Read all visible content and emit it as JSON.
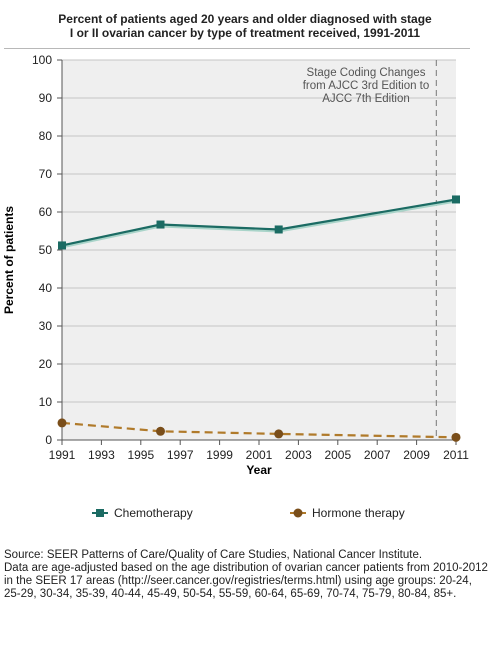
{
  "chart_data": {
    "type": "line",
    "title_lines": [
      "Percent of patients aged 20 years and older diagnosed with stage",
      "I or II ovarian cancer by type of treatment received, 1991-2011"
    ],
    "xlabel": "Year",
    "ylabel": "Percent of patients",
    "xlim": [
      1991,
      2011
    ],
    "ylim": [
      0,
      100
    ],
    "x_ticks": [
      1991,
      1993,
      1995,
      1997,
      1999,
      2001,
      2003,
      2005,
      2007,
      2009,
      2011
    ],
    "y_ticks": [
      0,
      10,
      20,
      30,
      40,
      50,
      60,
      70,
      80,
      90,
      100
    ],
    "grid": "horizontal",
    "series": [
      {
        "name": "Chemotherapy",
        "color": "#1b6b63",
        "marker": "square",
        "dash": "solid",
        "x": [
          1991,
          1996,
          2002,
          2011
        ],
        "values": [
          51.2,
          56.7,
          55.4,
          63.3
        ]
      },
      {
        "name": "Hormone therapy",
        "color": "#b07a2a",
        "marker": "circle",
        "dash": "dashed",
        "x": [
          1991,
          1996,
          2002,
          2011
        ],
        "values": [
          4.5,
          2.3,
          1.6,
          0.7
        ]
      }
    ],
    "annotation": {
      "lines": [
        "Stage Coding Changes",
        "from AJCC 3rd Edition to",
        "AJCC 7th Edition"
      ],
      "x": 2010
    }
  },
  "source": {
    "line1": "Source: SEER Patterns of Care/Quality of Care Studies, National Cancer Institute.",
    "line2": "Data are age-adjusted based on the age distribution of ovarian cancer patients from 2010-2012 in the SEER 17 areas (http://seer.cancer.gov/registries/terms.html) using age groups: 20-24, 25-29, 30-34, 35-39, 40-44, 45-49, 50-54, 55-59, 60-64, 65-69, 70-74, 75-79, 80-84, 85+."
  }
}
